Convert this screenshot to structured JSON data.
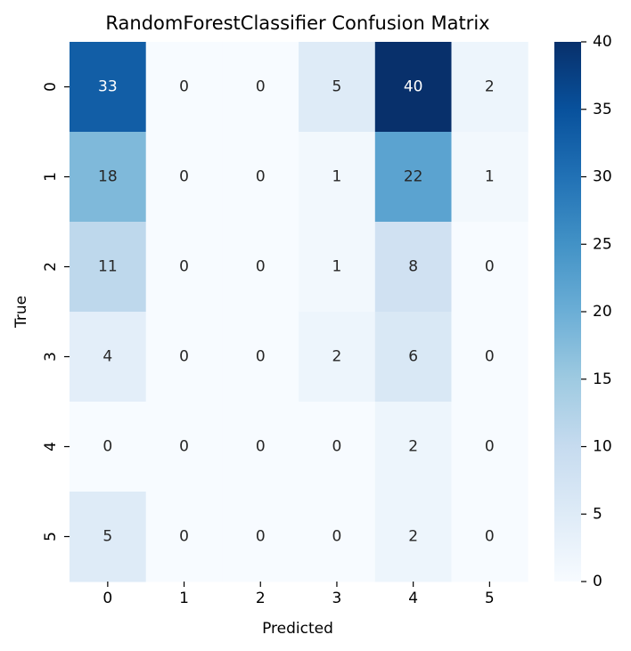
{
  "chart_data": {
    "type": "heatmap",
    "title": "RandomForestClassifier Confusion Matrix",
    "xlabel": "Predicted",
    "ylabel": "True",
    "x_categories": [
      "0",
      "1",
      "2",
      "3",
      "4",
      "5"
    ],
    "y_categories": [
      "0",
      "1",
      "2",
      "3",
      "4",
      "5"
    ],
    "matrix": [
      [
        33,
        0,
        0,
        5,
        40,
        2
      ],
      [
        18,
        0,
        0,
        1,
        22,
        1
      ],
      [
        11,
        0,
        0,
        1,
        8,
        0
      ],
      [
        4,
        0,
        0,
        2,
        6,
        0
      ],
      [
        0,
        0,
        0,
        0,
        2,
        0
      ],
      [
        5,
        0,
        0,
        0,
        2,
        0
      ]
    ],
    "colormap": "Blues",
    "vmin": 0,
    "vmax": 40,
    "colorbar_ticks": [
      "0",
      "5",
      "10",
      "15",
      "20",
      "25",
      "30",
      "35",
      "40"
    ],
    "grid": false,
    "annotated": true
  }
}
